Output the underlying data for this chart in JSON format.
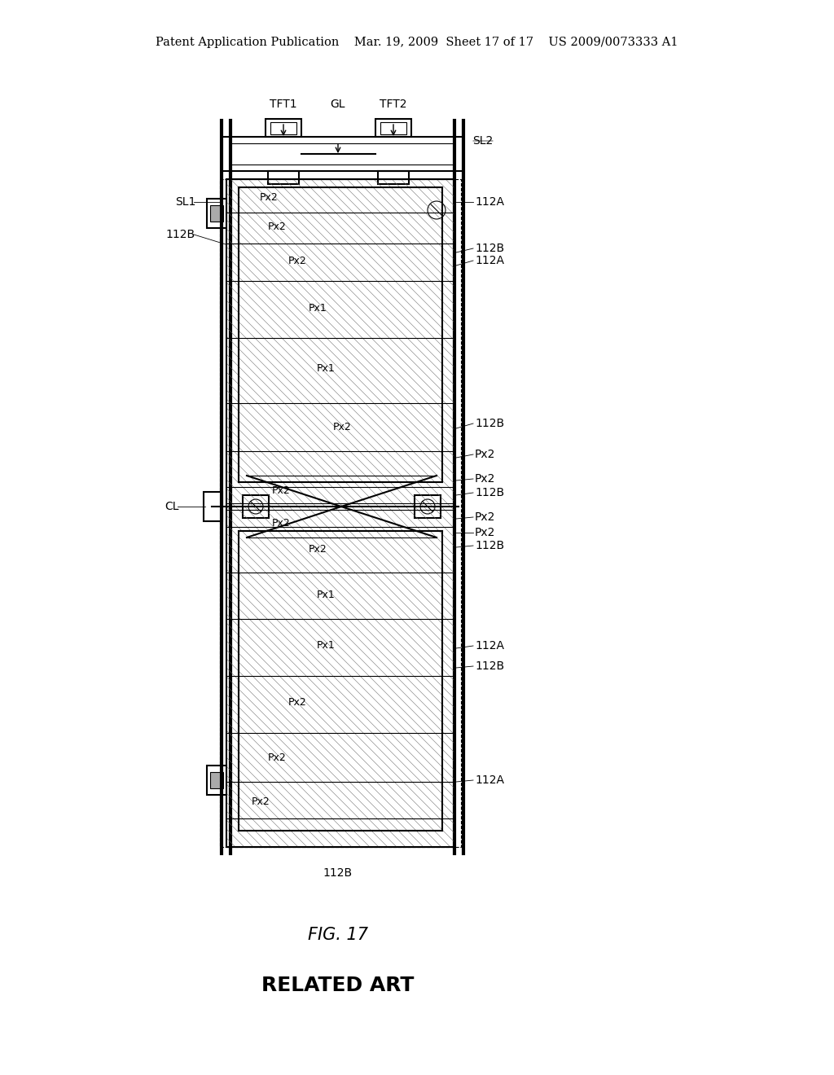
{
  "bg_color": "#ffffff",
  "line_color": "#000000",
  "header_text": "Patent Application Publication    Mar. 19, 2009  Sheet 17 of 17    US 2009/0073333 A1",
  "fig_label": "FIG. 17",
  "related_art": "RELATED ART",
  "title_fontsize": 10.5,
  "label_fontsize": 10,
  "fig_label_fontsize": 15,
  "related_art_fontsize": 18
}
